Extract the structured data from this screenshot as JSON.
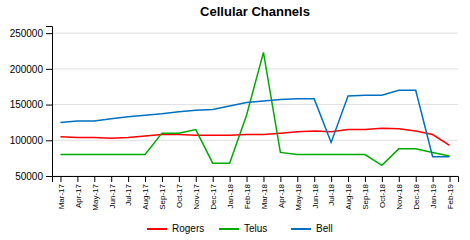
{
  "chart_data": {
    "type": "line",
    "title": "Cellular Channels",
    "categories": [
      "Mar-17",
      "Apr-17",
      "May-17",
      "Jun-17",
      "Jul-17",
      "Aug-17",
      "Sep-17",
      "Oct-17",
      "Nov-17",
      "Dec-17",
      "Jan-18",
      "Feb-18",
      "Mar-18",
      "Apr-18",
      "May-18",
      "Jun-18",
      "Jul-18",
      "Aug-18",
      "Sep-18",
      "Oct-18",
      "Nov-18",
      "Dec-18",
      "Jan-19",
      "Feb-19"
    ],
    "series": [
      {
        "name": "Rogers",
        "color": "#FF0000",
        "values": [
          105000,
          104000,
          104000,
          103000,
          104000,
          106000,
          108000,
          108000,
          107000,
          107000,
          107000,
          108000,
          108000,
          110000,
          112000,
          113000,
          112000,
          115000,
          115000,
          117000,
          116000,
          113000,
          108000,
          93000
        ]
      },
      {
        "name": "Telus",
        "color": "#00AA00",
        "values": [
          80000,
          80000,
          80000,
          80000,
          80000,
          80000,
          110000,
          110000,
          115000,
          68000,
          68000,
          135000,
          223000,
          83000,
          80000,
          80000,
          80000,
          80000,
          80000,
          65000,
          88000,
          88000,
          83000,
          78000
        ]
      },
      {
        "name": "Bell",
        "color": "#0070C0",
        "values": [
          125000,
          127000,
          127000,
          130000,
          133000,
          135000,
          137000,
          140000,
          142000,
          143000,
          148000,
          153000,
          155000,
          157000,
          158000,
          158000,
          97000,
          162000,
          163000,
          163000,
          170000,
          170000,
          77000,
          77000
        ]
      }
    ],
    "ylim": [
      50000,
      260000
    ],
    "yticks": [
      50000,
      100000,
      150000,
      200000,
      250000
    ],
    "grid": true,
    "legend": "bottom"
  }
}
